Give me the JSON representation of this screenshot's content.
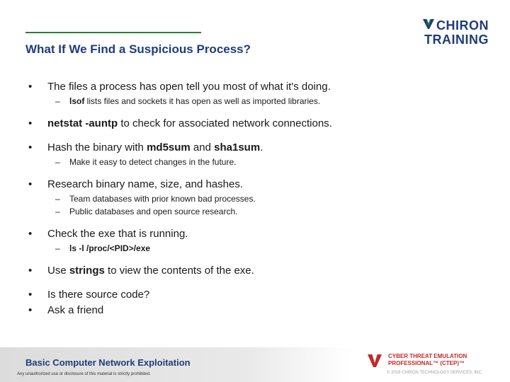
{
  "slide": {
    "title": "What If We Find a Suspicious Process?"
  },
  "logo": {
    "line1": "CHIRON",
    "line2": "TRAINING",
    "icon": "chiron-v-icon"
  },
  "bullets": [
    {
      "parts": [
        "The files a process has open tell you most of what it's doing."
      ],
      "subs": [
        {
          "bold": "lsof",
          "text": " lists files and sockets it has open as well as imported libraries."
        }
      ]
    },
    {
      "bold1": "netstat -auntp",
      "text1": " to check for associated network connections."
    },
    {
      "text1": "Hash the binary with ",
      "bold1": "md5sum",
      "text2": " and ",
      "bold2": "sha1sum",
      "text3": ".",
      "subs": [
        {
          "text": "Make it easy to detect changes in the future."
        }
      ]
    },
    {
      "text1": "Research binary name, size, and hashes.",
      "subs": [
        {
          "text": "Team databases with prior known bad processes."
        },
        {
          "text": "Public databases and open source research."
        }
      ]
    },
    {
      "text1": "Check the exe that is running.",
      "subs": [
        {
          "bold": "ls -l /proc/<PID>/exe"
        }
      ]
    },
    {
      "text1": "Use ",
      "bold1": "strings",
      "text2": " to view the contents of the exe."
    },
    {
      "text1": "Is there source code?"
    },
    {
      "text1": "Ask a friend"
    }
  ],
  "footer": {
    "course": "Basic Computer Network Exploitation",
    "notice": "Any unauthorized use or disclosure of this material is strictly prohibited.",
    "brand_line1": "CYBER THREAT EMULATION",
    "brand_line2": "PROFESSIONAL™ (CTEP)™",
    "copyright": "© 2019 CHIRON TECHNOLOGY SERVICES, INC.",
    "brand_icon": "ctep-shield-icon"
  },
  "colors": {
    "title": "#1f3d7a",
    "accent_rule": "#2e7d32",
    "brand_red": "#c62828"
  }
}
